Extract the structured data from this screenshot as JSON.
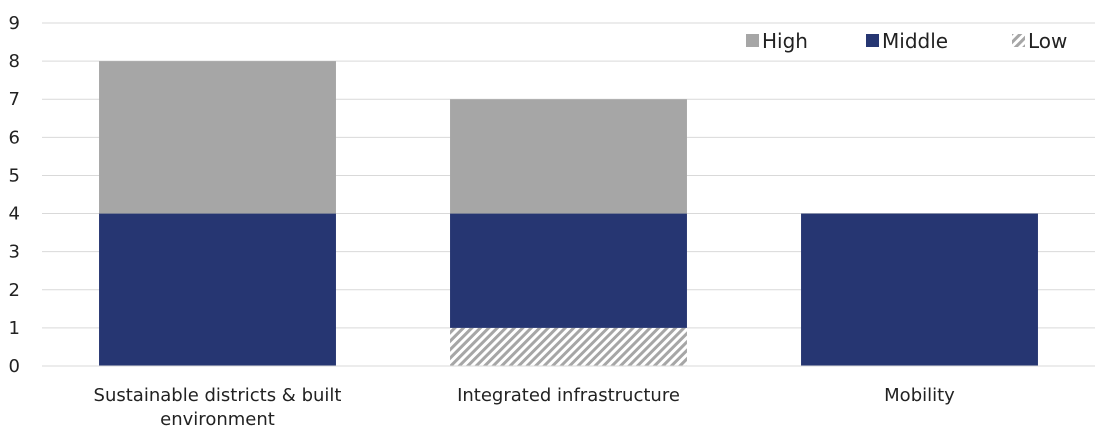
{
  "chart_data": {
    "type": "bar",
    "stacked": true,
    "categories": [
      [
        "Sustainable districts & built",
        "environment"
      ],
      [
        "Integrated infrastructure"
      ],
      [
        "Mobility"
      ]
    ],
    "series": [
      {
        "name": "Low",
        "values": [
          0,
          1,
          0
        ],
        "color": "#a6a6a6",
        "pattern": "diagonal-hatch"
      },
      {
        "name": "Middle",
        "values": [
          4,
          3,
          4
        ],
        "color": "#263672"
      },
      {
        "name": "High",
        "values": [
          4,
          3,
          0
        ],
        "color": "#a6a6a6"
      }
    ],
    "legend_order": [
      "High",
      "Middle",
      "Low"
    ],
    "legend_position": "top-right",
    "ylim": [
      0,
      9
    ],
    "yticks": [
      "0",
      "1",
      "2",
      "3",
      "4",
      "5",
      "6",
      "7",
      "8",
      "9"
    ],
    "grid": true,
    "title": "",
    "xlabel": "",
    "ylabel": ""
  }
}
